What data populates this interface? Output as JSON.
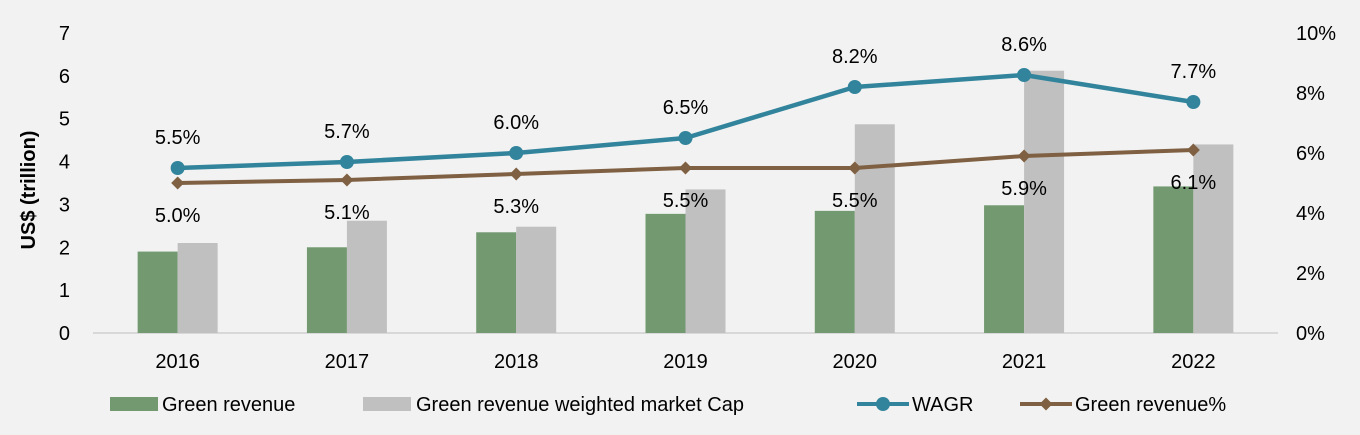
{
  "chart_data": {
    "type": "bar",
    "categories": [
      "2016",
      "2017",
      "2018",
      "2019",
      "2020",
      "2021",
      "2022"
    ],
    "ylabel": "US$ (trillion)",
    "ylim": [
      0,
      7
    ],
    "y_ticks": [
      "0",
      "1",
      "2",
      "3",
      "4",
      "5",
      "6",
      "7"
    ],
    "y2lim": [
      0,
      10
    ],
    "y2_ticks": [
      "0%",
      "2%",
      "4%",
      "6%",
      "8%",
      "10%"
    ],
    "grid": false,
    "legend_position": "bottom",
    "series": [
      {
        "name": "Green revenue",
        "type": "bar",
        "axis": "left",
        "color": "#72996f",
        "values": [
          1.9,
          2.0,
          2.35,
          2.78,
          2.85,
          2.98,
          3.42
        ]
      },
      {
        "name": "Green revenue weighted market Cap",
        "type": "bar",
        "axis": "left",
        "color": "#c0c0c0",
        "values": [
          2.1,
          2.62,
          2.48,
          3.35,
          4.87,
          6.12,
          4.4
        ]
      },
      {
        "name": "WAGR",
        "type": "line",
        "axis": "right",
        "color": "#31849b",
        "marker": "circle",
        "values": [
          5.5,
          5.7,
          6.0,
          6.5,
          8.2,
          8.6,
          7.7
        ],
        "labels": [
          "5.5%",
          "5.7%",
          "6.0%",
          "6.5%",
          "8.2%",
          "8.6%",
          "7.7%"
        ]
      },
      {
        "name": "Green revenue%",
        "type": "line",
        "axis": "right",
        "color": "#7f6042",
        "marker": "diamond",
        "values": [
          5.0,
          5.1,
          5.3,
          5.5,
          5.5,
          5.9,
          6.1
        ],
        "labels": [
          "5.0%",
          "5.1%",
          "5.3%",
          "5.5%",
          "5.5%",
          "5.9%",
          "6.1%"
        ]
      }
    ]
  }
}
